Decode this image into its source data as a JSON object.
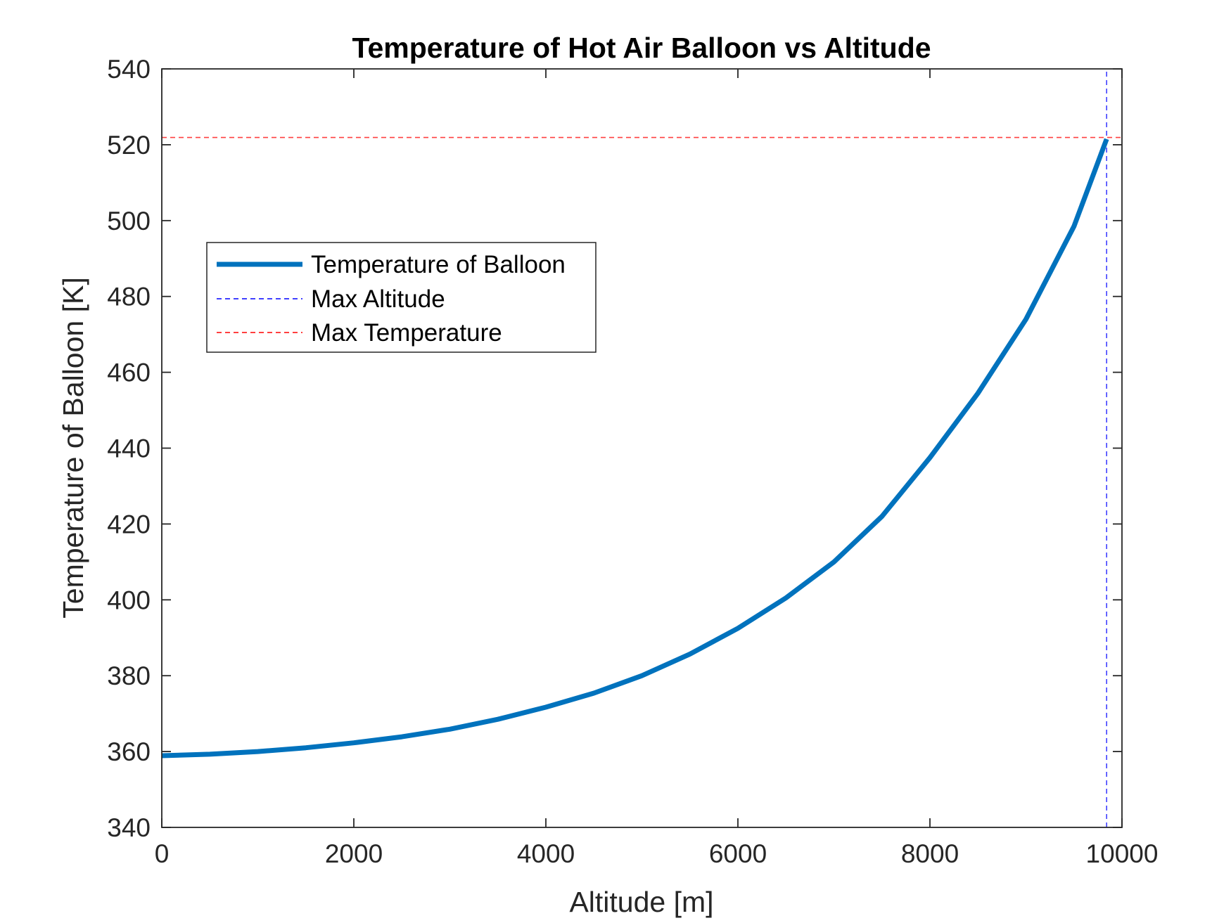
{
  "chart_data": {
    "type": "line",
    "title": "Temperature of Hot Air Balloon vs Altitude",
    "xlabel": "Altitude [m]",
    "ylabel": "Temperature of Balloon [K]",
    "xlim": [
      0,
      10000
    ],
    "ylim": [
      340,
      540
    ],
    "xticks": [
      0,
      2000,
      4000,
      6000,
      8000,
      10000
    ],
    "yticks": [
      340,
      360,
      380,
      400,
      420,
      440,
      460,
      480,
      500,
      520,
      540
    ],
    "grid": false,
    "legend_position": "upper-left",
    "series": [
      {
        "name": "Temperature of Balloon",
        "color": "#0072BD",
        "style": "solid",
        "x": [
          0,
          500,
          1000,
          1500,
          2000,
          2500,
          3000,
          3500,
          4000,
          4500,
          5000,
          5500,
          6000,
          6500,
          7000,
          7500,
          8000,
          8500,
          9000,
          9500,
          9840
        ],
        "y": [
          358.9,
          359.3,
          360.0,
          361.0,
          362.3,
          363.9,
          365.9,
          368.5,
          371.7,
          375.4,
          380.0,
          385.7,
          392.5,
          400.5,
          410.0,
          422.0,
          437.5,
          454.5,
          474.0,
          498.5,
          521.5
        ]
      },
      {
        "name": "Max Altitude",
        "color": "#0000FF",
        "style": "dashed",
        "x": [
          9840,
          9840
        ],
        "y": [
          340,
          540
        ]
      },
      {
        "name": "Max Temperature",
        "color": "#FF0000",
        "style": "dashed",
        "x": [
          0,
          10000
        ],
        "y": [
          521.9,
          521.9
        ]
      }
    ]
  }
}
